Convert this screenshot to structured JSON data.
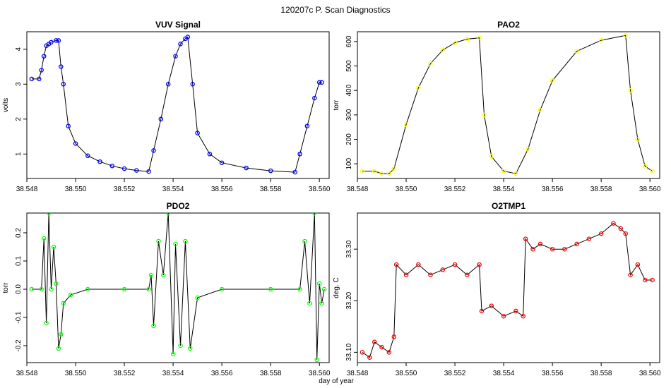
{
  "figure": {
    "title": "120207c   P. Scan Diagnostics",
    "shared_xlabel": "day of year"
  },
  "chart_data": [
    {
      "type": "scatter",
      "title": "VUV Signal",
      "xlabel": "",
      "ylabel": "volts",
      "xlim": [
        38.548,
        38.5604
      ],
      "ylim": [
        0.3,
        4.5
      ],
      "xticks": [
        38.548,
        38.55,
        38.552,
        38.554,
        38.556,
        38.558,
        38.56
      ],
      "xtick_labels": [
        "38.548",
        "38.550",
        "38.552",
        "38.554",
        "38.556",
        "38.558",
        "38.560"
      ],
      "yticks": [
        1,
        2,
        3,
        4
      ],
      "ytick_labels": [
        "1",
        "2",
        "3",
        "4"
      ],
      "color": "#0000ff",
      "connected": true,
      "x": [
        38.5482,
        38.5485,
        38.5486,
        38.5487,
        38.5488,
        38.5489,
        38.549,
        38.5492,
        38.5493,
        38.5494,
        38.5495,
        38.5497,
        38.55,
        38.5505,
        38.551,
        38.5515,
        38.552,
        38.5525,
        38.553,
        38.5532,
        38.5535,
        38.5538,
        38.5541,
        38.5543,
        38.5545,
        38.5546,
        38.5548,
        38.555,
        38.5555,
        38.556,
        38.557,
        38.558,
        38.559,
        38.5592,
        38.5595,
        38.5598,
        38.56,
        38.5601
      ],
      "y": [
        3.15,
        3.15,
        3.4,
        3.8,
        4.1,
        4.15,
        4.2,
        4.25,
        4.25,
        3.5,
        3.0,
        1.8,
        1.3,
        0.95,
        0.78,
        0.66,
        0.58,
        0.53,
        0.5,
        1.1,
        2.0,
        3.0,
        3.8,
        4.15,
        4.3,
        4.35,
        3.0,
        1.6,
        1.0,
        0.75,
        0.6,
        0.52,
        0.48,
        1.0,
        1.8,
        2.6,
        3.05,
        3.05
      ]
    },
    {
      "type": "scatter",
      "title": "PAO2",
      "xlabel": "",
      "ylabel": "torr",
      "xlim": [
        38.548,
        38.5604
      ],
      "ylim": [
        40,
        640
      ],
      "xticks": [
        38.548,
        38.55,
        38.552,
        38.554,
        38.556,
        38.558,
        38.56
      ],
      "xtick_labels": [
        "38.548",
        "38.550",
        "38.552",
        "38.554",
        "38.556",
        "38.558",
        "38.560"
      ],
      "yticks": [
        100,
        200,
        300,
        400,
        500,
        600
      ],
      "ytick_labels": [
        "100",
        "200",
        "300",
        "400",
        "500",
        "600"
      ],
      "color": "#ffff00",
      "connected": true,
      "x": [
        38.5482,
        38.5487,
        38.549,
        38.5493,
        38.5495,
        38.55,
        38.5505,
        38.551,
        38.5515,
        38.552,
        38.5525,
        38.553,
        38.5532,
        38.5535,
        38.554,
        38.5545,
        38.555,
        38.5555,
        38.556,
        38.557,
        38.558,
        38.559,
        38.5592,
        38.5595,
        38.5598,
        38.5601
      ],
      "y": [
        70,
        70,
        60,
        60,
        80,
        260,
        410,
        510,
        565,
        595,
        610,
        615,
        300,
        130,
        70,
        60,
        160,
        320,
        440,
        560,
        605,
        625,
        400,
        200,
        90,
        70
      ]
    },
    {
      "type": "scatter",
      "title": "PDO2",
      "xlabel": "",
      "ylabel": "torr",
      "xlim": [
        38.548,
        38.5604
      ],
      "ylim": [
        -0.26,
        0.27
      ],
      "xticks": [
        38.548,
        38.55,
        38.552,
        38.554,
        38.556,
        38.558,
        38.56
      ],
      "xtick_labels": [
        "38.548",
        "38.550",
        "38.552",
        "38.554",
        "38.556",
        "38.558",
        "38.560"
      ],
      "yticks": [
        -0.2,
        -0.1,
        0.0,
        0.1,
        0.2
      ],
      "ytick_labels": [
        "-0.2",
        "-0.1",
        "0.0",
        "0.1",
        "0.2"
      ],
      "color": "#00ff00",
      "connected": true,
      "x": [
        38.5482,
        38.5486,
        38.5487,
        38.5488,
        38.5489,
        38.549,
        38.5491,
        38.5492,
        38.5493,
        38.5494,
        38.5495,
        38.5498,
        38.5505,
        38.552,
        38.553,
        38.5531,
        38.5532,
        38.5534,
        38.5536,
        38.5538,
        38.554,
        38.5541,
        38.5543,
        38.5545,
        38.5547,
        38.555,
        38.556,
        38.558,
        38.5592,
        38.5594,
        38.5596,
        38.5598,
        38.5599,
        38.56,
        38.5601,
        38.5602
      ],
      "y": [
        0.0,
        0.0,
        0.18,
        -0.12,
        0.27,
        0.0,
        0.15,
        0.02,
        -0.21,
        -0.16,
        -0.05,
        -0.02,
        0.0,
        0.0,
        0.0,
        0.05,
        -0.13,
        0.17,
        0.05,
        0.27,
        -0.23,
        0.16,
        -0.2,
        0.17,
        -0.21,
        -0.03,
        0.0,
        0.0,
        0.0,
        0.17,
        -0.05,
        0.27,
        -0.25,
        0.02,
        -0.05,
        0.0
      ]
    },
    {
      "type": "scatter",
      "title": "O2TMP1",
      "xlabel": "",
      "ylabel": "deg. C",
      "xlim": [
        38.548,
        38.5604
      ],
      "ylim": [
        33.08,
        33.37
      ],
      "xticks": [
        38.548,
        38.55,
        38.552,
        38.554,
        38.556,
        38.558,
        38.56
      ],
      "xtick_labels": [
        "38.548",
        "38.550",
        "38.552",
        "38.554",
        "38.556",
        "38.558",
        "38.560"
      ],
      "yticks": [
        33.1,
        33.2,
        33.3
      ],
      "ytick_labels": [
        "33.10",
        "33.20",
        "33.30"
      ],
      "color": "#ff0000",
      "connected": true,
      "x": [
        38.5482,
        38.5485,
        38.5487,
        38.549,
        38.5493,
        38.5495,
        38.5496,
        38.55,
        38.5505,
        38.551,
        38.5515,
        38.552,
        38.5525,
        38.553,
        38.5531,
        38.5535,
        38.554,
        38.5545,
        38.5548,
        38.5549,
        38.5552,
        38.5555,
        38.556,
        38.5565,
        38.557,
        38.5575,
        38.558,
        38.5585,
        38.5588,
        38.559,
        38.5592,
        38.5595,
        38.5598,
        38.5601
      ],
      "y": [
        33.1,
        33.09,
        33.12,
        33.11,
        33.1,
        33.13,
        33.27,
        33.25,
        33.27,
        33.25,
        33.26,
        33.27,
        33.25,
        33.27,
        33.18,
        33.19,
        33.17,
        33.18,
        33.17,
        33.32,
        33.3,
        33.31,
        33.3,
        33.3,
        33.31,
        33.32,
        33.33,
        33.35,
        33.34,
        33.33,
        33.25,
        33.27,
        33.24,
        33.24
      ]
    }
  ]
}
